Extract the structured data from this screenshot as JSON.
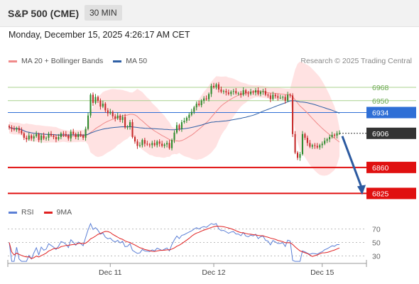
{
  "header": {
    "instrument": "S&P 500 (CME)",
    "timeframe": "30 MIN"
  },
  "timestamp": "Monday, December 15, 2025 4:26:17 AM CET",
  "legend": {
    "bollinger": {
      "label": "MA 20 + Bollinger Bands",
      "color": "#f08a8a"
    },
    "ma50": {
      "label": "MA 50",
      "color": "#2e5fa5"
    }
  },
  "research": "Research © 2025 Trading Central",
  "rsi_legend": {
    "rsi": {
      "label": "RSI",
      "color": "#5b7fd6"
    },
    "ma9": {
      "label": "9MA",
      "color": "#e02020"
    }
  },
  "colors": {
    "up": "#2e8b2e",
    "down": "#c62828",
    "resistance": "#a8d08d",
    "pivot": "#2f6fd6",
    "support": "#e01010",
    "last": "#333333",
    "arrow": "#2c5aa0"
  },
  "chart_data": {
    "type": "candlestick",
    "price_axis": {
      "min": 6812,
      "max": 6990
    },
    "x_tick_labels": [
      "Dec 11",
      "Dec 12",
      "Dec 15"
    ],
    "levels": [
      {
        "value": 6968,
        "label": "6968",
        "kind": "resistance"
      },
      {
        "value": 6950,
        "label": "6950",
        "kind": "resistance"
      },
      {
        "value": 6934,
        "label": "6934",
        "kind": "pivot"
      },
      {
        "value": 6906,
        "label": "6906",
        "kind": "last"
      },
      {
        "value": 6860,
        "label": "6860",
        "kind": "support"
      },
      {
        "value": 6825,
        "label": "6825",
        "kind": "support"
      }
    ],
    "close": [
      6914,
      6912,
      6911,
      6913,
      6910,
      6906,
      6900,
      6898,
      6903,
      6899,
      6902,
      6905,
      6897,
      6903,
      6899,
      6900,
      6905,
      6903,
      6901,
      6898,
      6901,
      6906,
      6905,
      6903,
      6899,
      6908,
      6905,
      6901,
      6905,
      6903,
      6900,
      6912,
      6930,
      6958,
      6947,
      6955,
      6950,
      6942,
      6946,
      6937,
      6933,
      6935,
      6929,
      6926,
      6930,
      6924,
      6928,
      6914,
      6915,
      6921,
      6901,
      6895,
      6889,
      6890,
      6897,
      6892,
      6891,
      6890,
      6893,
      6890,
      6895,
      6892,
      6889,
      6891,
      6893,
      6886,
      6897,
      6907,
      6917,
      6912,
      6921,
      6923,
      6927,
      6931,
      6935,
      6941,
      6946,
      6944,
      6950,
      6953,
      6952,
      6959,
      6970,
      6968,
      6972,
      6965,
      6962,
      6963,
      6961,
      6959,
      6962,
      6963,
      6960,
      6960,
      6958,
      6964,
      6960,
      6959,
      6962,
      6961,
      6964,
      6959,
      6962,
      6963,
      6958,
      6957,
      6952,
      6958,
      6956,
      6954,
      6954,
      6955,
      6950,
      6958,
      6957,
      6905,
      6880,
      6873,
      6878,
      6905,
      6900,
      6893,
      6888,
      6890,
      6889,
      6887,
      6890,
      6892,
      6896,
      6898,
      6901,
      6904,
      6903,
      6906,
      6906
    ],
    "rsi": {
      "levels": [
        70,
        50,
        30
      ],
      "ylim": [
        20,
        80
      ]
    }
  }
}
